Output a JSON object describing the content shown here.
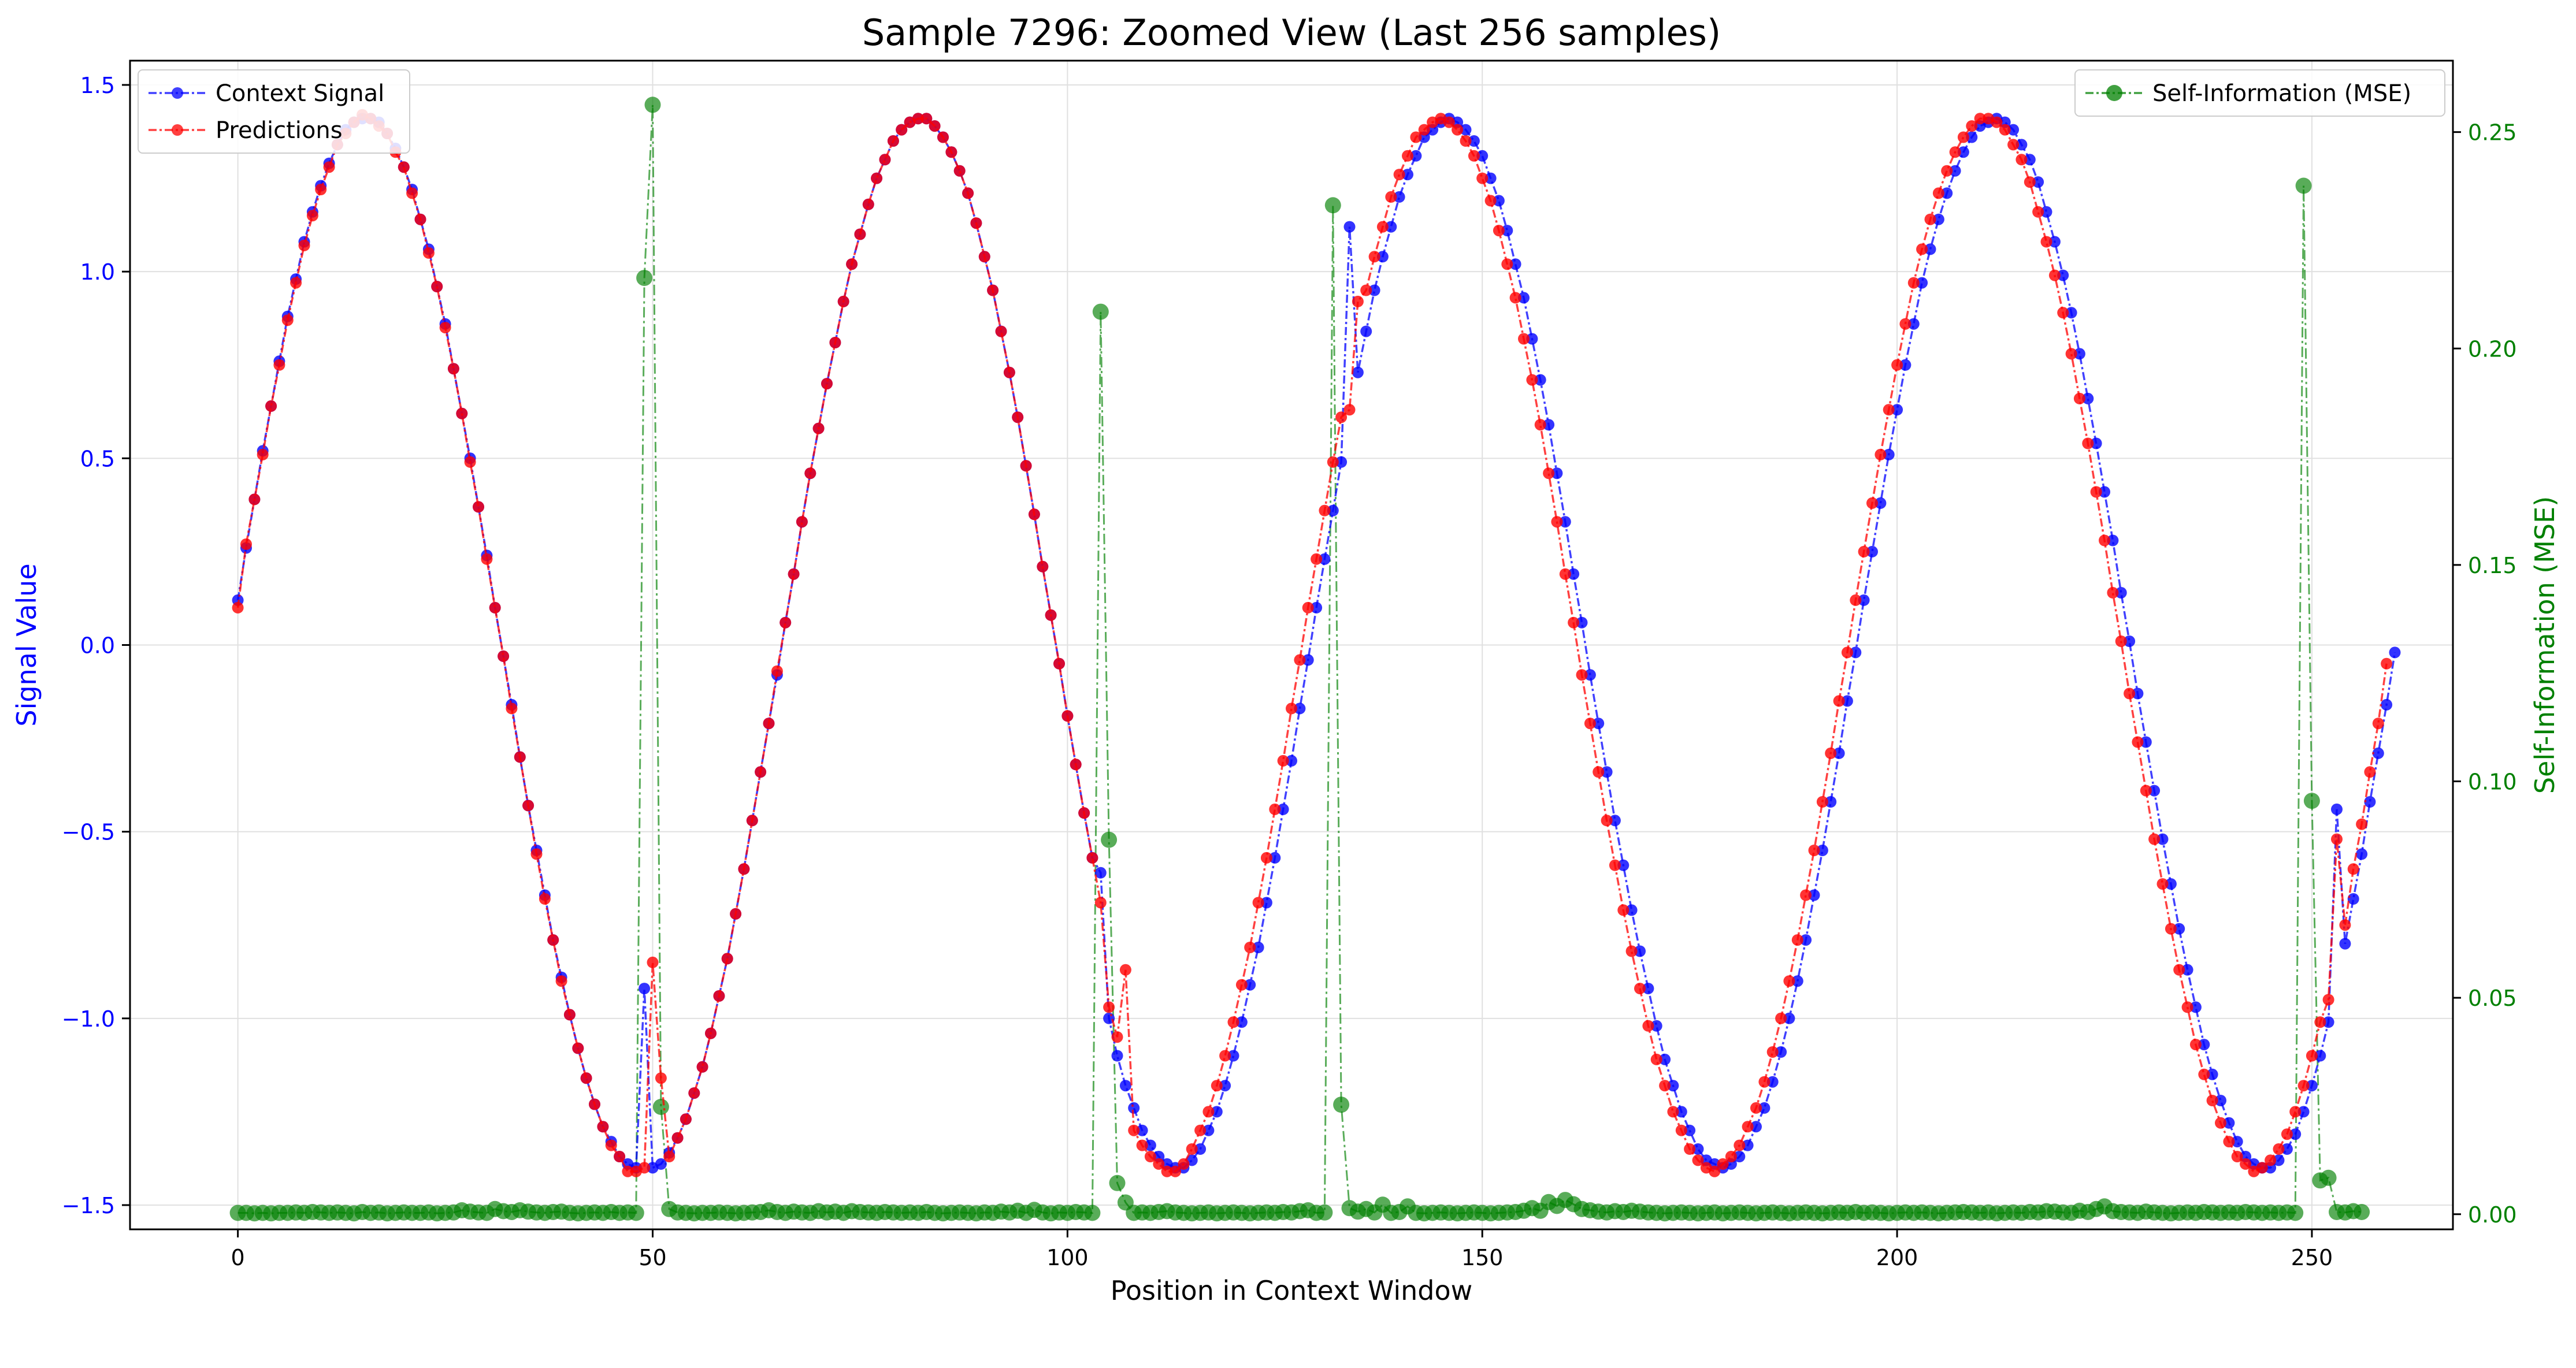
{
  "colors": {
    "context": "#0000ff",
    "predictions": "#ff0000",
    "mse": "#008000",
    "grid": "#e0e0e0",
    "axis": "#000000"
  },
  "chart_data": {
    "type": "line",
    "title": "Sample 7296: Zoomed View (Last 256 samples)",
    "xlabel": "Position in Context Window",
    "ylabel_left": "Signal Value",
    "ylabel_right": "Self-Information (MSE)",
    "xlim": [
      -13,
      267
    ],
    "ylim_left": [
      -1.565,
      1.565
    ],
    "ylim_right": [
      -0.0035,
      0.2665
    ],
    "xticks": [
      0,
      50,
      100,
      150,
      200,
      250
    ],
    "xtick_labels": [
      "0",
      "50",
      "100",
      "150",
      "200",
      "250"
    ],
    "yticks_left": [
      -1.5,
      -1.0,
      -0.5,
      0.0,
      0.5,
      1.0,
      1.5
    ],
    "ytick_labels_left": [
      "−1.5",
      "−1.0",
      "−0.5",
      "0.0",
      "0.5",
      "1.0",
      "1.5"
    ],
    "yticks_right": [
      0.0,
      0.05,
      0.1,
      0.15,
      0.2,
      0.25
    ],
    "ytick_labels_right": [
      "0.00",
      "0.05",
      "0.10",
      "0.15",
      "0.20",
      "0.25"
    ],
    "grid": true,
    "legend_left": {
      "placement": "upper-left",
      "entries": [
        "Context Signal",
        "Predictions"
      ]
    },
    "legend_right": {
      "placement": "upper-right",
      "entries": [
        "Self-Information (MSE)"
      ]
    },
    "x_start": 0,
    "x_step": 1,
    "series": [
      {
        "name": "Context Signal",
        "axis": "left",
        "color": "#0000ff",
        "values": [
          0.12,
          0.26,
          0.39,
          0.52,
          0.64,
          0.76,
          0.88,
          0.98,
          1.08,
          1.16,
          1.23,
          1.29,
          1.34,
          1.38,
          1.4,
          1.41,
          1.41,
          1.4,
          1.37,
          1.33,
          1.28,
          1.22,
          1.14,
          1.06,
          0.96,
          0.86,
          0.74,
          0.62,
          0.5,
          0.37,
          0.24,
          0.1,
          -0.03,
          -0.16,
          -0.3,
          -0.43,
          -0.55,
          -0.67,
          -0.79,
          -0.89,
          -0.99,
          -1.08,
          -1.16,
          -1.23,
          -1.29,
          -1.33,
          -1.37,
          -1.39,
          -1.4,
          -0.92,
          -1.4,
          -1.39,
          -1.36,
          -1.32,
          -1.27,
          -1.2,
          -1.13,
          -1.04,
          -0.94,
          -0.84,
          -0.72,
          -0.6,
          -0.47,
          -0.34,
          -0.21,
          -0.08,
          0.06,
          0.19,
          0.33,
          0.46,
          0.58,
          0.7,
          0.81,
          0.92,
          1.02,
          1.1,
          1.18,
          1.25,
          1.3,
          1.35,
          1.38,
          1.4,
          1.41,
          1.41,
          1.39,
          1.36,
          1.32,
          1.27,
          1.21,
          1.13,
          1.04,
          0.95,
          0.84,
          0.73,
          0.61,
          0.48,
          0.35,
          0.21,
          0.08,
          -0.05,
          -0.19,
          -0.32,
          -0.45,
          -0.57,
          -0.61,
          -1.0,
          -1.1,
          -1.18,
          -1.24,
          -1.3,
          -1.34,
          -1.37,
          -1.39,
          -1.4,
          -1.4,
          -1.38,
          -1.35,
          -1.3,
          -1.25,
          -1.18,
          -1.1,
          -1.01,
          -0.91,
          -0.81,
          -0.69,
          -0.57,
          -0.44,
          -0.31,
          -0.17,
          -0.04,
          0.1,
          0.23,
          0.36,
          0.49,
          1.12,
          0.73,
          0.84,
          0.95,
          1.04,
          1.12,
          1.2,
          1.26,
          1.31,
          1.36,
          1.38,
          1.4,
          1.41,
          1.4,
          1.38,
          1.35,
          1.31,
          1.25,
          1.19,
          1.11,
          1.02,
          0.93,
          0.82,
          0.71,
          0.59,
          0.46,
          0.33,
          0.19,
          0.06,
          -0.08,
          -0.21,
          -0.34,
          -0.47,
          -0.59,
          -0.71,
          -0.82,
          -0.92,
          -1.02,
          -1.11,
          -1.18,
          -1.25,
          -1.3,
          -1.35,
          -1.38,
          -1.39,
          -1.4,
          -1.39,
          -1.37,
          -1.34,
          -1.29,
          -1.24,
          -1.17,
          -1.09,
          -1.0,
          -0.9,
          -0.79,
          -0.67,
          -0.55,
          -0.42,
          -0.29,
          -0.15,
          -0.02,
          0.12,
          0.25,
          0.38,
          0.51,
          0.63,
          0.75,
          0.86,
          0.97,
          1.06,
          1.14,
          1.21,
          1.27,
          1.32,
          1.36,
          1.39,
          1.4,
          1.41,
          1.4,
          1.38,
          1.34,
          1.3,
          1.24,
          1.16,
          1.08,
          0.99,
          0.89,
          0.78,
          0.66,
          0.54,
          0.41,
          0.28,
          0.14,
          0.01,
          -0.13,
          -0.26,
          -0.39,
          -0.52,
          -0.64,
          -0.76,
          -0.87,
          -0.97,
          -1.07,
          -1.15,
          -1.22,
          -1.28,
          -1.33,
          -1.37,
          -1.39,
          -1.4,
          -1.4,
          -1.38,
          -1.35,
          -1.31,
          -1.25,
          -1.18,
          -1.1,
          -1.01,
          -0.44,
          -0.8,
          -0.68,
          -0.56,
          -0.42,
          -0.29,
          -0.16,
          -0.02
        ]
      },
      {
        "name": "Predictions",
        "axis": "left",
        "color": "#ff0000",
        "values": [
          0.1,
          0.27,
          0.39,
          0.51,
          0.64,
          0.75,
          0.87,
          0.97,
          1.07,
          1.15,
          1.22,
          1.28,
          1.34,
          1.37,
          1.4,
          1.42,
          1.41,
          1.39,
          1.37,
          1.32,
          1.28,
          1.21,
          1.14,
          1.05,
          0.96,
          0.85,
          0.74,
          0.62,
          0.49,
          0.37,
          0.23,
          0.1,
          -0.03,
          -0.17,
          -0.3,
          -0.43,
          -0.56,
          -0.68,
          -0.79,
          -0.9,
          -0.99,
          -1.08,
          -1.16,
          -1.23,
          -1.29,
          -1.34,
          -1.37,
          -1.41,
          -1.41,
          -1.4,
          -0.85,
          -1.16,
          -1.37,
          -1.32,
          -1.27,
          -1.2,
          -1.13,
          -1.04,
          -0.94,
          -0.84,
          -0.72,
          -0.6,
          -0.47,
          -0.34,
          -0.21,
          -0.07,
          0.06,
          0.19,
          0.33,
          0.46,
          0.58,
          0.7,
          0.81,
          0.92,
          1.02,
          1.1,
          1.18,
          1.25,
          1.3,
          1.35,
          1.38,
          1.4,
          1.41,
          1.41,
          1.39,
          1.36,
          1.32,
          1.27,
          1.21,
          1.13,
          1.04,
          0.95,
          0.84,
          0.73,
          0.61,
          0.48,
          0.35,
          0.21,
          0.08,
          -0.05,
          -0.19,
          -0.32,
          -0.45,
          -0.57,
          -0.69,
          -0.97,
          -1.05,
          -0.87,
          -1.3,
          -1.34,
          -1.37,
          -1.39,
          -1.41,
          -1.41,
          -1.39,
          -1.35,
          -1.3,
          -1.25,
          -1.18,
          -1.1,
          -1.01,
          -0.91,
          -0.81,
          -0.69,
          -0.57,
          -0.44,
          -0.31,
          -0.17,
          -0.04,
          0.1,
          0.23,
          0.36,
          0.49,
          0.61,
          0.63,
          0.92,
          0.95,
          1.04,
          1.12,
          1.2,
          1.26,
          1.31,
          1.36,
          1.38,
          1.4,
          1.41,
          1.4,
          1.38,
          1.35,
          1.31,
          1.25,
          1.19,
          1.11,
          1.02,
          0.93,
          0.82,
          0.71,
          0.59,
          0.46,
          0.33,
          0.19,
          0.06,
          -0.08,
          -0.21,
          -0.34,
          -0.47,
          -0.59,
          -0.71,
          -0.82,
          -0.92,
          -1.02,
          -1.11,
          -1.18,
          -1.25,
          -1.3,
          -1.35,
          -1.38,
          -1.4,
          -1.41,
          -1.39,
          -1.37,
          -1.34,
          -1.29,
          -1.24,
          -1.17,
          -1.09,
          -1.0,
          -0.9,
          -0.79,
          -0.67,
          -0.55,
          -0.42,
          -0.29,
          -0.15,
          -0.02,
          0.12,
          0.25,
          0.38,
          0.51,
          0.63,
          0.75,
          0.86,
          0.97,
          1.06,
          1.14,
          1.21,
          1.27,
          1.32,
          1.36,
          1.39,
          1.41,
          1.41,
          1.4,
          1.38,
          1.34,
          1.3,
          1.24,
          1.16,
          1.08,
          0.99,
          0.89,
          0.78,
          0.66,
          0.54,
          0.41,
          0.28,
          0.14,
          0.01,
          -0.13,
          -0.26,
          -0.39,
          -0.52,
          -0.64,
          -0.76,
          -0.87,
          -0.97,
          -1.07,
          -1.15,
          -1.22,
          -1.28,
          -1.33,
          -1.37,
          -1.39,
          -1.41,
          -1.4,
          -1.38,
          -1.35,
          -1.31,
          -1.25,
          -1.18,
          -1.1,
          -1.01,
          -0.95,
          -0.52,
          -0.75,
          -0.6,
          -0.48,
          -0.34,
          -0.21,
          -0.05
        ]
      },
      {
        "name": "Self-Information (MSE)",
        "axis": "right",
        "color": "#008000",
        "values": [
          0.0003,
          0.0003,
          0.0002,
          0.0003,
          0.0002,
          0.0003,
          0.0003,
          0.0004,
          0.0003,
          0.0005,
          0.0004,
          0.0003,
          0.0004,
          0.0003,
          0.0002,
          0.0005,
          0.0003,
          0.0004,
          0.0002,
          0.0003,
          0.0004,
          0.0003,
          0.0003,
          0.0004,
          0.0002,
          0.0003,
          0.0004,
          0.0009,
          0.0006,
          0.0004,
          0.0003,
          0.0012,
          0.0007,
          0.0005,
          0.0009,
          0.0006,
          0.0004,
          0.0003,
          0.0005,
          0.0006,
          0.0003,
          0.0002,
          0.0003,
          0.0004,
          0.0003,
          0.0005,
          0.0003,
          0.0004,
          0.0003,
          0.2163,
          0.2563,
          0.0248,
          0.0012,
          0.0004,
          0.0003,
          0.0002,
          0.0003,
          0.0003,
          0.0004,
          0.0003,
          0.0002,
          0.0003,
          0.0004,
          0.0005,
          0.0009,
          0.0005,
          0.0003,
          0.0006,
          0.0004,
          0.0003,
          0.0007,
          0.0004,
          0.0006,
          0.0003,
          0.0007,
          0.0005,
          0.0004,
          0.0003,
          0.0005,
          0.0004,
          0.0003,
          0.0004,
          0.0003,
          0.0005,
          0.0003,
          0.0002,
          0.0003,
          0.0004,
          0.0003,
          0.0002,
          0.0004,
          0.0003,
          0.0006,
          0.0004,
          0.0008,
          0.0003,
          0.001,
          0.0004,
          0.0002,
          0.0004,
          0.0003,
          0.0005,
          0.0004,
          0.0003,
          0.2085,
          0.0865,
          0.0072,
          0.0027,
          0.0003,
          0.0004,
          0.0003,
          0.0005,
          0.0007,
          0.0004,
          0.0003,
          0.0002,
          0.0003,
          0.0004,
          0.0002,
          0.0003,
          0.0004,
          0.0003,
          0.0002,
          0.0003,
          0.0004,
          0.0003,
          0.0005,
          0.0004,
          0.0007,
          0.0009,
          0.0003,
          0.0004,
          0.2331,
          0.0253,
          0.0014,
          0.0006,
          0.0012,
          0.0004,
          0.0022,
          0.0003,
          0.0005,
          0.0018,
          0.0003,
          0.0002,
          0.0003,
          0.0004,
          0.0003,
          0.0002,
          0.0003,
          0.0004,
          0.0003,
          0.0002,
          0.0003,
          0.0004,
          0.0005,
          0.0008,
          0.0014,
          0.0008,
          0.0028,
          0.0019,
          0.0033,
          0.0023,
          0.0012,
          0.0009,
          0.0006,
          0.0004,
          0.0007,
          0.0005,
          0.0008,
          0.0006,
          0.0004,
          0.0003,
          0.0002,
          0.0003,
          0.0004,
          0.0003,
          0.0002,
          0.0003,
          0.0004,
          0.0002,
          0.0003,
          0.0004,
          0.0003,
          0.0002,
          0.0003,
          0.0004,
          0.0003,
          0.0002,
          0.0003,
          0.0004,
          0.0003,
          0.0002,
          0.0003,
          0.0004,
          0.0003,
          0.0005,
          0.0003,
          0.0004,
          0.0003,
          0.0002,
          0.0003,
          0.0004,
          0.0003,
          0.0004,
          0.0003,
          0.0002,
          0.0003,
          0.0004,
          0.0005,
          0.0004,
          0.0003,
          0.0004,
          0.0002,
          0.0003,
          0.0004,
          0.0003,
          0.0005,
          0.0004,
          0.0007,
          0.0006,
          0.0004,
          0.0003,
          0.0008,
          0.0005,
          0.0012,
          0.0018,
          0.0007,
          0.0005,
          0.0004,
          0.0003,
          0.0006,
          0.0004,
          0.0003,
          0.0002,
          0.0003,
          0.0004,
          0.0003,
          0.0005,
          0.0004,
          0.0003,
          0.0004,
          0.0003,
          0.0005,
          0.0004,
          0.0003,
          0.0004,
          0.0003,
          0.0004,
          0.0003,
          0.2376,
          0.0955,
          0.0078,
          0.0084,
          0.0005,
          0.0004,
          0.0007,
          0.0005
        ]
      }
    ]
  }
}
